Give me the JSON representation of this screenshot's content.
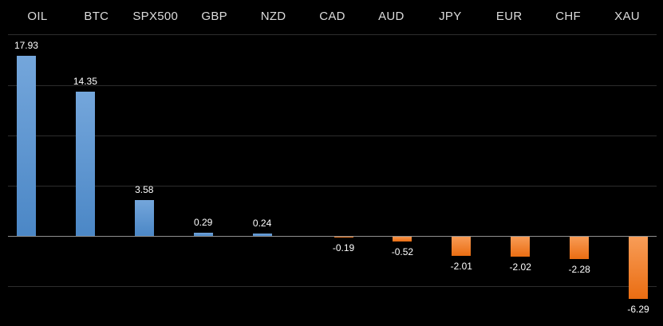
{
  "chart_data": {
    "type": "bar",
    "title": "",
    "categories": [
      "OIL",
      "BTC",
      "SPX500",
      "GBP",
      "NZD",
      "CAD",
      "AUD",
      "JPY",
      "EUR",
      "CHF",
      "XAU"
    ],
    "values": [
      17.93,
      14.35,
      3.58,
      0.29,
      0.24,
      -0.19,
      -0.52,
      -2.01,
      -2.02,
      -2.28,
      -6.29
    ],
    "value_labels": [
      "17.93",
      "14.35",
      "3.58",
      "0.29",
      "0.24",
      "-0.19",
      "-0.52",
      "-2.01",
      "-2.02",
      "-2.28",
      "-6.29"
    ],
    "xlabel": "",
    "ylabel": "",
    "ylim": [
      -9,
      20
    ],
    "gridline_values": [
      20,
      15,
      10,
      5,
      -5
    ],
    "zero_baseline": 0,
    "grid": true,
    "legend_position": "none",
    "axis_tick_labels_visible": false,
    "series_note": "positive values drawn as blue bars left of category center, negative values as orange bars right of category center",
    "colors": {
      "background": "#000000",
      "positive_bar_top": "#74a6db",
      "positive_bar_bottom": "#4b87c6",
      "negative_bar_top": "#f89d58",
      "negative_bar_bottom": "#ea6d12",
      "gridline": "#2d2d2d",
      "zero_line": "#8f8f8f",
      "category_label": "#dcdcdc",
      "value_label": "#ffffff"
    }
  }
}
